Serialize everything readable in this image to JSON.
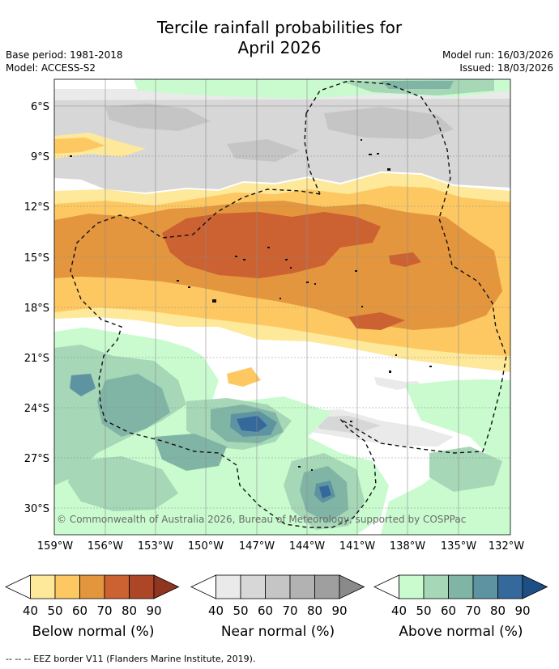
{
  "header": {
    "title_line1": "Tercile rainfall probabilities for",
    "title_line2": "April 2026",
    "base_period": "Base period: 1981-2018",
    "model": "Model: ACCESS-S2",
    "model_run": "Model run: 16/03/2026",
    "issued": "Issued: 18/03/2026"
  },
  "map": {
    "lat_labels": [
      "6°S",
      "9°S",
      "12°S",
      "15°S",
      "18°S",
      "21°S",
      "24°S",
      "27°S",
      "30°S"
    ],
    "lon_labels": [
      "159°W",
      "156°W",
      "153°W",
      "150°W",
      "147°W",
      "144°W",
      "141°W",
      "138°W",
      "135°W",
      "132°W"
    ],
    "copyright": "© Commonwealth of Australia 2026, Bureau of Meteorology, supported by COSPPac"
  },
  "colorbars": [
    {
      "title": "Below normal (%)",
      "ticks": [
        "40",
        "50",
        "60",
        "70",
        "80",
        "90"
      ],
      "colors": [
        "#ffffff",
        "#fee99a",
        "#fdc862",
        "#e3963e",
        "#cc6131",
        "#ac4627",
        "#8f3520"
      ]
    },
    {
      "title": "Near normal (%)",
      "ticks": [
        "40",
        "50",
        "60",
        "70",
        "80",
        "90"
      ],
      "colors": [
        "#ffffff",
        "#eaeaea",
        "#d7d7d7",
        "#c5c5c5",
        "#b2b2b2",
        "#9f9f9f",
        "#8a8a8a"
      ]
    },
    {
      "title": "Above normal (%)",
      "ticks": [
        "40",
        "50",
        "60",
        "70",
        "80",
        "90"
      ],
      "colors": [
        "#ffffff",
        "#c9fbcf",
        "#a6d7b6",
        "#80b5a6",
        "#5e94a2",
        "#35689b",
        "#1d4f85"
      ]
    }
  ],
  "legend": {
    "eez": "--  --  -- EEZ border V11 (Flanders Marine Institute, 2019)."
  }
}
